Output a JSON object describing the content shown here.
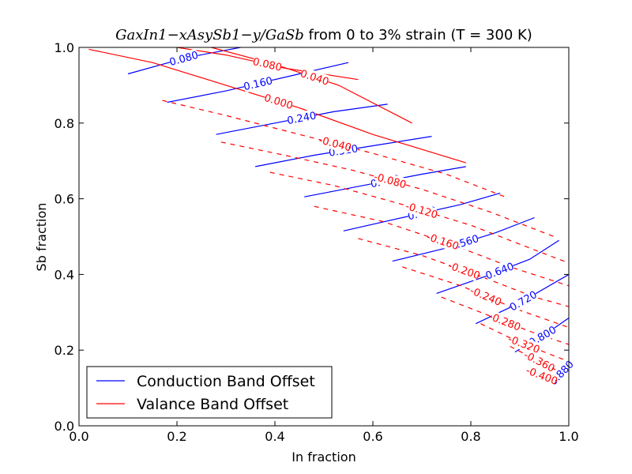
{
  "chart_data": {
    "type": "contour",
    "title_math": "GaxIn1−xAsySb1−y/GaSb",
    "title_rest": " from 0 to 3% strain (T = 300 K)",
    "xlabel": "In fraction",
    "ylabel": "Sb fraction",
    "xlim": [
      0.0,
      1.0
    ],
    "ylim": [
      0.0,
      1.0
    ],
    "xticks": [
      "0.0",
      "0.2",
      "0.4",
      "0.6",
      "0.8",
      "1.0"
    ],
    "yticks": [
      "0.0",
      "0.2",
      "0.4",
      "0.6",
      "0.8",
      "1.0"
    ],
    "legend_position": "lower-left",
    "series": [
      {
        "name": "Conduction Band Offset",
        "color": "#0000ff",
        "line_style": "solid",
        "contours": [
          {
            "label": "0.080",
            "points": [
              [
                0.1,
                0.93
              ],
              [
                0.22,
                0.973
              ],
              [
                0.33,
                1.0
              ]
            ]
          },
          {
            "label": "0.160",
            "points": [
              [
                0.18,
                0.855
              ],
              [
                0.3,
                0.885
              ],
              [
                0.45,
                0.93
              ],
              [
                0.55,
                0.96
              ]
            ]
          },
          {
            "label": "0.240",
            "points": [
              [
                0.28,
                0.77
              ],
              [
                0.4,
                0.8
              ],
              [
                0.52,
                0.83
              ],
              [
                0.63,
                0.85
              ]
            ]
          },
          {
            "label": "0.320",
            "points": [
              [
                0.36,
                0.685
              ],
              [
                0.48,
                0.715
              ],
              [
                0.6,
                0.74
              ],
              [
                0.72,
                0.765
              ]
            ]
          },
          {
            "label": "0.400",
            "points": [
              [
                0.46,
                0.605
              ],
              [
                0.58,
                0.635
              ],
              [
                0.7,
                0.665
              ],
              [
                0.79,
                0.685
              ]
            ]
          },
          {
            "label": "0.480",
            "points": [
              [
                0.54,
                0.515
              ],
              [
                0.66,
                0.55
              ],
              [
                0.78,
                0.585
              ],
              [
                0.86,
                0.615
              ]
            ]
          },
          {
            "label": "0.560",
            "points": [
              [
                0.64,
                0.435
              ],
              [
                0.75,
                0.47
              ],
              [
                0.85,
                0.51
              ],
              [
                0.93,
                0.55
              ]
            ]
          },
          {
            "label": "0.640",
            "points": [
              [
                0.73,
                0.35
              ],
              [
                0.83,
                0.395
              ],
              [
                0.92,
                0.44
              ],
              [
                0.98,
                0.49
              ]
            ]
          },
          {
            "label": "0.720",
            "points": [
              [
                0.81,
                0.27
              ],
              [
                0.9,
                0.325
              ],
              [
                1.0,
                0.4
              ]
            ]
          },
          {
            "label": "0.800",
            "points": [
              [
                0.89,
                0.195
              ],
              [
                0.95,
                0.24
              ],
              [
                1.0,
                0.285
              ]
            ]
          },
          {
            "label": "0.880",
            "points": [
              [
                0.97,
                0.12
              ],
              [
                1.0,
                0.16
              ]
            ]
          }
        ]
      },
      {
        "name": "Valance Band Offset",
        "color": "#ff0000",
        "line_style": "solid (≥ 0) / dashed (< 0)",
        "contours": [
          {
            "label": "0.080",
            "points": [
              [
                0.2,
                1.0
              ],
              [
                0.3,
                0.98
              ],
              [
                0.42,
                0.945
              ],
              [
                0.57,
                0.915
              ]
            ]
          },
          {
            "label": "0.040",
            "points": [
              [
                0.27,
                1.0
              ],
              [
                0.4,
                0.955
              ],
              [
                0.53,
                0.9
              ],
              [
                0.68,
                0.8
              ]
            ]
          },
          {
            "label": "0.000",
            "points": [
              [
                0.02,
                0.995
              ],
              [
                0.15,
                0.96
              ],
              [
                0.3,
                0.9
              ],
              [
                0.45,
                0.84
              ],
              [
                0.6,
                0.77
              ],
              [
                0.79,
                0.695
              ]
            ]
          },
          {
            "label": "-0.040",
            "points": [
              [
                0.17,
                0.86
              ],
              [
                0.3,
                0.82
              ],
              [
                0.45,
                0.77
              ],
              [
                0.6,
                0.72
              ],
              [
                0.75,
                0.665
              ],
              [
                0.87,
                0.605
              ]
            ]
          },
          {
            "label": "-0.080",
            "points": [
              [
                0.29,
                0.75
              ],
              [
                0.42,
                0.715
              ],
              [
                0.56,
                0.675
              ],
              [
                0.7,
                0.625
              ],
              [
                0.84,
                0.565
              ],
              [
                0.97,
                0.5
              ]
            ]
          },
          {
            "label": "-0.120",
            "points": [
              [
                0.39,
                0.67
              ],
              [
                0.52,
                0.635
              ],
              [
                0.66,
                0.585
              ],
              [
                0.8,
                0.53
              ],
              [
                0.92,
                0.47
              ],
              [
                1.0,
                0.43
              ]
            ]
          },
          {
            "label": "-0.160",
            "points": [
              [
                0.48,
                0.58
              ],
              [
                0.62,
                0.54
              ],
              [
                0.76,
                0.48
              ],
              [
                0.88,
                0.42
              ],
              [
                1.0,
                0.37
              ]
            ]
          },
          {
            "label": "-0.200",
            "points": [
              [
                0.57,
                0.495
              ],
              [
                0.7,
                0.45
              ],
              [
                0.82,
                0.395
              ],
              [
                0.93,
                0.34
              ],
              [
                1.0,
                0.315
              ]
            ]
          },
          {
            "label": "-0.240",
            "points": [
              [
                0.66,
                0.42
              ],
              [
                0.78,
                0.37
              ],
              [
                0.89,
                0.31
              ],
              [
                1.0,
                0.26
              ]
            ]
          },
          {
            "label": "-0.280",
            "points": [
              [
                0.74,
                0.34
              ],
              [
                0.84,
                0.29
              ],
              [
                0.93,
                0.245
              ],
              [
                1.0,
                0.215
              ]
            ]
          },
          {
            "label": "-0.320",
            "points": [
              [
                0.82,
                0.27
              ],
              [
                0.9,
                0.22
              ],
              [
                1.0,
                0.17
              ]
            ]
          },
          {
            "label": "-0.360",
            "points": [
              [
                0.88,
                0.21
              ],
              [
                0.94,
                0.17
              ],
              [
                1.0,
                0.13
              ]
            ]
          },
          {
            "label": "-0.400",
            "points": [
              [
                0.92,
                0.145
              ],
              [
                0.97,
                0.12
              ]
            ]
          }
        ]
      }
    ]
  }
}
